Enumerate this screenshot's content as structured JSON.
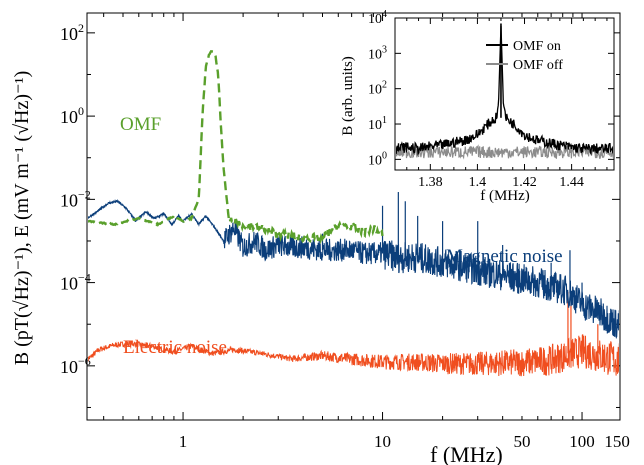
{
  "chart_data": [
    {
      "type": "line",
      "role": "main",
      "xscale": "log",
      "yscale": "log",
      "xlim": [
        0.33,
        155
      ],
      "ylim": [
        5e-08,
        300
      ],
      "xlabel": "f (MHz)",
      "ylabel": "B (pT(√Hz)⁻¹),  E (mV m⁻¹ (√Hz)⁻¹)",
      "xticks": [
        {
          "value": 1,
          "label": "1"
        },
        {
          "value": 10,
          "label": "10"
        },
        {
          "value": 50,
          "label": "50"
        },
        {
          "value": 100,
          "label": "100"
        },
        {
          "value": 150,
          "label": "150"
        }
      ],
      "yticks": [
        {
          "value": 1e-06,
          "label": "10",
          "exp": "−6"
        },
        {
          "value": 0.0001,
          "label": "10",
          "exp": "−4"
        },
        {
          "value": 0.01,
          "label": "10",
          "exp": "−2"
        },
        {
          "value": 1,
          "label": "10",
          "exp": "0"
        },
        {
          "value": 100,
          "label": "10",
          "exp": "2"
        }
      ],
      "series": [
        {
          "name": "Magnetic noise",
          "color": "#0b3e7a",
          "style": "solid",
          "x": [
            0.33,
            0.37,
            0.42,
            0.47,
            0.52,
            0.58,
            0.65,
            0.72,
            0.8,
            0.88,
            0.95,
            1.0,
            1.1,
            1.2,
            1.3,
            1.45,
            1.6,
            1.8,
            2.0,
            2.3,
            2.6,
            3.0,
            3.5,
            4.0,
            5.0,
            6.0,
            7.0,
            8.0,
            9.0,
            10.0,
            12.0,
            15.0,
            20.0,
            25.0,
            30.0,
            40.0,
            50.0,
            60.0,
            70.0,
            80.0,
            90.0,
            100.0,
            120.0,
            150.0
          ],
          "y": [
            0.0035,
            0.005,
            0.008,
            0.009,
            0.006,
            0.003,
            0.005,
            0.0035,
            0.0045,
            0.0025,
            0.004,
            0.003,
            0.0045,
            0.0025,
            0.004,
            0.002,
            0.001,
            0.002,
            0.0007,
            0.001,
            0.0006,
            0.0008,
            0.0007,
            0.0007,
            0.0006,
            0.0006,
            0.0006,
            0.0005,
            0.0005,
            0.0005,
            0.0004,
            0.0004,
            0.0003,
            0.00025,
            0.0002,
            0.00015,
            0.00012,
            0.0001,
            8e-05,
            7e-05,
            5e-05,
            3e-05,
            2e-05,
            1e-05
          ],
          "peaks": [
            {
              "x": 5.0,
              "y": 0.0015
            },
            {
              "x": 10.0,
              "y": 0.007
            },
            {
              "x": 12.0,
              "y": 0.015
            },
            {
              "x": 13.0,
              "y": 0.009
            },
            {
              "x": 15.0,
              "y": 0.004
            },
            {
              "x": 20.0,
              "y": 0.003
            },
            {
              "x": 30.0,
              "y": 0.003
            },
            {
              "x": 40.0,
              "y": 0.0008
            },
            {
              "x": 70.0,
              "y": 0.0003
            },
            {
              "x": 87.0,
              "y": 0.0006
            },
            {
              "x": 100.0,
              "y": 0.0001
            }
          ]
        },
        {
          "name": "OMF",
          "color": "#5aa02c",
          "style": "dashed",
          "x": [
            0.33,
            0.45,
            0.6,
            0.75,
            0.9,
            1.0,
            1.1,
            1.2,
            1.25,
            1.3,
            1.35,
            1.4,
            1.45,
            1.5,
            1.55,
            1.6,
            1.7,
            2.0,
            2.5,
            3.0,
            4.0,
            5.0,
            6.0,
            7.0,
            8.0,
            9.0,
            10.0
          ],
          "y": [
            0.003,
            0.0025,
            0.0035,
            0.0025,
            0.004,
            0.003,
            0.0035,
            0.01,
            1.0,
            15.0,
            30.0,
            38.0,
            30.0,
            10.0,
            0.5,
            0.05,
            0.003,
            0.0025,
            0.002,
            0.0015,
            0.0012,
            0.0012,
            0.0025,
            0.0022,
            0.0016,
            0.002,
            0.0015
          ]
        },
        {
          "name": "Electric noise",
          "color": "#f04e1f",
          "style": "solid",
          "x": [
            0.33,
            0.38,
            0.45,
            0.55,
            0.7,
            0.9,
            1.1,
            1.4,
            1.8,
            2.5,
            3.5,
            5.0,
            7.0,
            10.0,
            15.0,
            20.0,
            30.0,
            50.0,
            70.0,
            85.0,
            100.0,
            120.0,
            150.0
          ],
          "y": [
            1.4e-06,
            2.5e-06,
            3.2e-06,
            3.5e-06,
            3e-06,
            2.2e-06,
            3e-06,
            2e-06,
            2.5e-06,
            2e-06,
            1.5e-06,
            1.8e-06,
            1.5e-06,
            1.3e-06,
            1.3e-06,
            1.2e-06,
            1.2e-06,
            1.3e-06,
            1.5e-06,
            2e-06,
            2.5e-06,
            2e-06,
            1.5e-06
          ],
          "peaks": [
            {
              "x": 85.0,
              "y": 6e-05
            },
            {
              "x": 88.0,
              "y": 3e-05
            },
            {
              "x": 120.0,
              "y": 1e-05
            }
          ]
        }
      ],
      "annotations": [
        "OMF",
        "Magnetic noise",
        "Electric noise"
      ]
    },
    {
      "type": "line",
      "role": "inset",
      "xscale": "linear",
      "yscale": "log",
      "xlim": [
        1.365,
        1.458
      ],
      "ylim": [
        0.5,
        10000
      ],
      "xlabel": "f (MHz)",
      "ylabel": "B (arb. units)",
      "xticks": [
        {
          "value": 1.38,
          "label": "1.38"
        },
        {
          "value": 1.4,
          "label": "1.4"
        },
        {
          "value": 1.42,
          "label": "1.42"
        },
        {
          "value": 1.44,
          "label": "1.44"
        }
      ],
      "yticks": [
        {
          "value": 1,
          "label": "10",
          "exp": "0"
        },
        {
          "value": 10,
          "label": "10",
          "exp": "1"
        },
        {
          "value": 100,
          "label": "10",
          "exp": "2"
        },
        {
          "value": 1000,
          "label": "10",
          "exp": "3"
        },
        {
          "value": 10000,
          "label": "10",
          "exp": "4"
        }
      ],
      "legend": "top-right",
      "series": [
        {
          "name": "OMF on",
          "color": "#000000",
          "x": [
            1.365,
            1.37,
            1.375,
            1.38,
            1.385,
            1.39,
            1.395,
            1.4,
            1.403,
            1.406,
            1.408,
            1.409,
            1.41,
            1.411,
            1.412,
            1.414,
            1.417,
            1.42,
            1.425,
            1.43,
            1.435,
            1.44,
            1.445,
            1.45,
            1.458
          ],
          "y": [
            2.0,
            2.2,
            2.0,
            2.3,
            2.5,
            3.0,
            3.5,
            5.0,
            8.0,
            12.0,
            15.0,
            40.0,
            7000.0,
            40.0,
            15.0,
            12.0,
            8.0,
            5.0,
            3.5,
            3.0,
            2.5,
            2.2,
            2.0,
            2.0,
            2.0
          ]
        },
        {
          "name": "OMF off",
          "color": "#8c8c8c",
          "x": [
            1.365,
            1.458
          ],
          "y": [
            1.6,
            1.6
          ]
        }
      ]
    }
  ]
}
